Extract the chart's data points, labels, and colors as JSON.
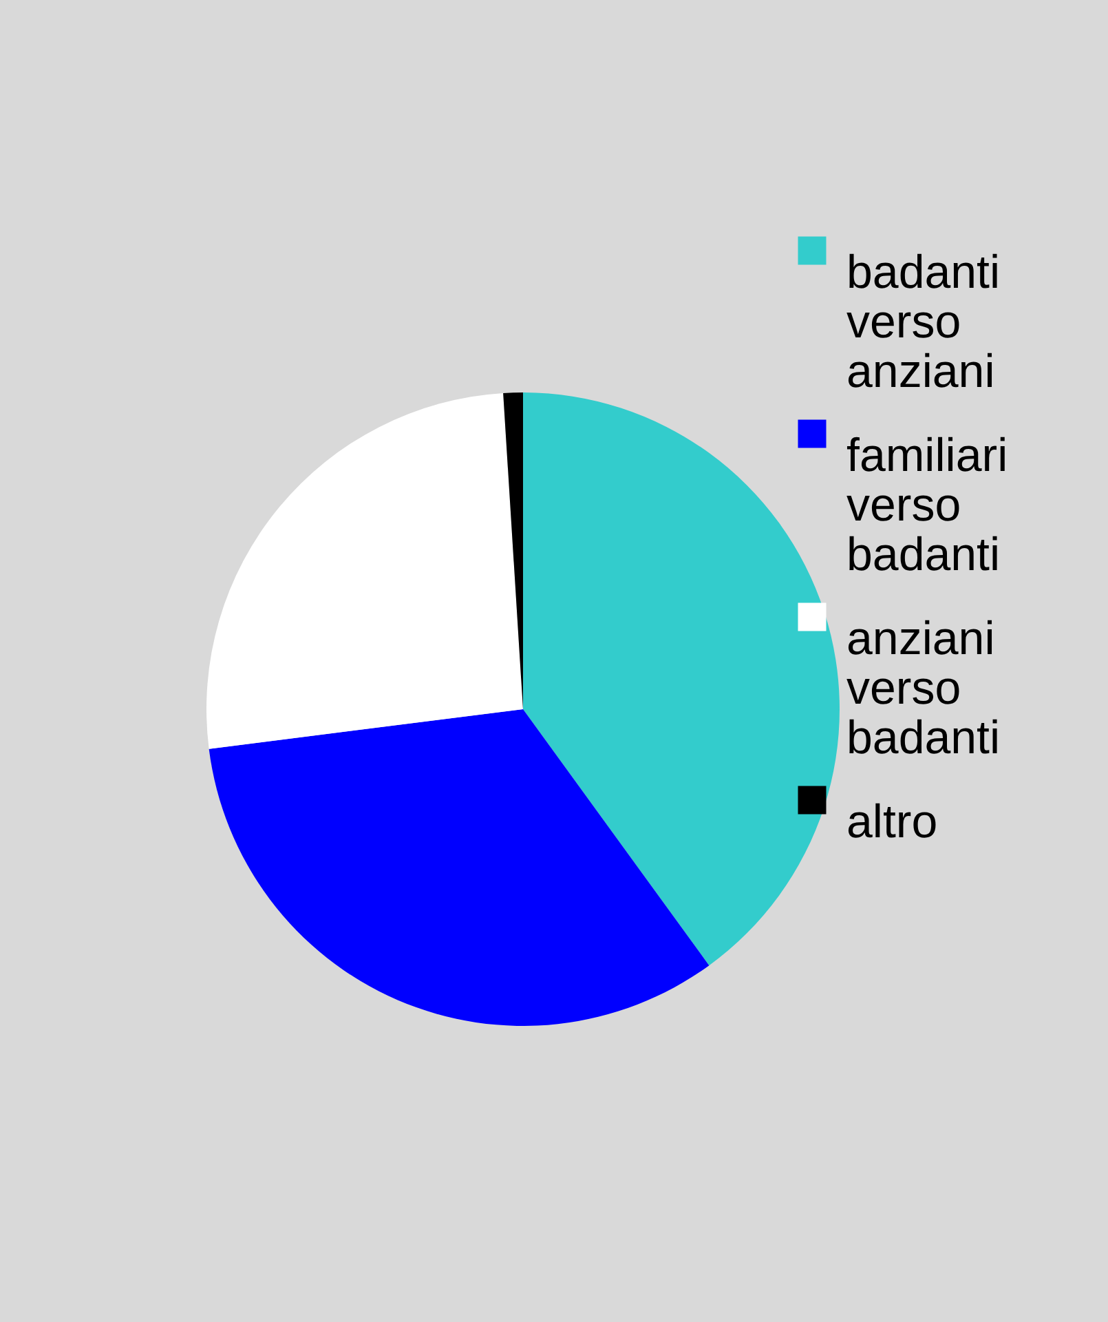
{
  "chart_data": {
    "type": "pie",
    "categories": [
      "badanti verso anziani",
      "familiari verso badanti",
      "anziani verso badanti",
      "altro"
    ],
    "values": [
      40,
      33,
      26,
      1
    ],
    "colors": [
      "#33cccc",
      "#0000ff",
      "#ffffff",
      "#000000"
    ],
    "legend": "right"
  }
}
